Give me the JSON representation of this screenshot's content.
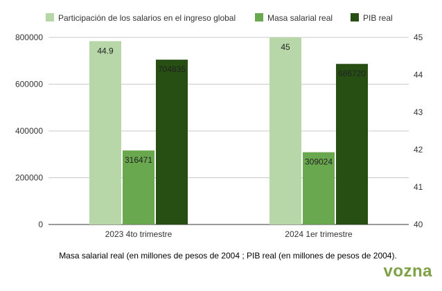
{
  "chart_data": {
    "type": "bar",
    "categories": [
      "2023 4to trimestre",
      "2024 1er trimestre"
    ],
    "series": [
      {
        "name": "Participación de los salarios en el ingreso global",
        "values": [
          44.9,
          45
        ],
        "axis": "right",
        "color": "#b7d7a8"
      },
      {
        "name": "Masa salarial real",
        "values": [
          316471,
          309024
        ],
        "axis": "left",
        "color": "#6aa84f"
      },
      {
        "name": "PIB real",
        "values": [
          704835,
          686720
        ],
        "axis": "left",
        "color": "#274e13"
      }
    ],
    "y_left": {
      "ylim": [
        0,
        800000
      ],
      "ticks": [
        "0",
        "200000",
        "400000",
        "600000",
        "800000"
      ]
    },
    "y_right": {
      "ylim": [
        40,
        45
      ],
      "ticks": [
        "40",
        "41",
        "42",
        "43",
        "44",
        "45"
      ]
    },
    "legend_position": "top",
    "grid": true
  },
  "caption": "Masa salarial real (en millones de pesos de 2004 ; PIB real (en millones de pesos de 2004).",
  "brand": "vozna"
}
